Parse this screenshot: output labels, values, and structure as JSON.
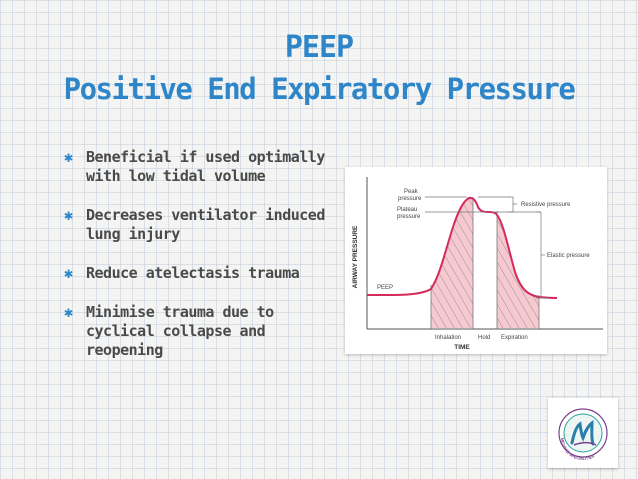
{
  "title": {
    "line1": "PEEP",
    "line2": "Positive End Expiratory Pressure"
  },
  "bullets": [
    "Beneficial if used optimally with low tidal volume",
    "Decreases ventilator induced lung injury",
    "Reduce atelectasis trauma",
    "Minimise trauma due to cyclical collapse and reopening"
  ],
  "bullet_icon": "asterisk-icon",
  "figure": {
    "y_axis_label": "AIRWAY PRESSURE",
    "x_axis_label": "TIME",
    "labels": {
      "peak": "Peak pressure",
      "plateau": "Plateau pressure",
      "resistive": "Resistive pressure",
      "elastic": "Elastic pressure",
      "peep": "PEEP",
      "inhalation": "Inhalation",
      "hold": "Hold",
      "expiration": "Expiration"
    },
    "curve_color": "#d42a5c",
    "fill_color": "#f6c8cf"
  },
  "logo": {
    "icon": "m-logo-icon",
    "text": "MEDITAB SPECIALITIES"
  },
  "colors": {
    "title": "#2e86c9",
    "bullet_star": "#2e86c9",
    "text": "#4a4a4a"
  }
}
